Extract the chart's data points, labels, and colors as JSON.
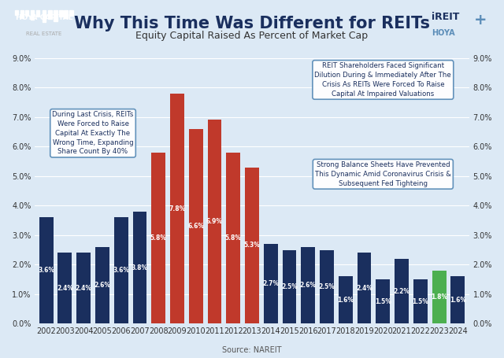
{
  "years": [
    "2002",
    "2003",
    "2004",
    "2005",
    "2006",
    "2007",
    "2008",
    "2009",
    "2010",
    "2011",
    "2012",
    "2013",
    "2014",
    "2015",
    "2016",
    "2017",
    "2018",
    "2019",
    "2020",
    "2021",
    "2022",
    "2023",
    "2024"
  ],
  "values": [
    3.6,
    2.4,
    2.4,
    2.6,
    3.6,
    3.8,
    5.8,
    7.8,
    6.6,
    6.9,
    5.8,
    5.3,
    2.7,
    2.5,
    2.6,
    2.5,
    1.6,
    2.4,
    1.5,
    2.2,
    1.5,
    1.8,
    1.6
  ],
  "colors": [
    "#1a2f5e",
    "#1a2f5e",
    "#1a2f5e",
    "#1a2f5e",
    "#1a2f5e",
    "#1a2f5e",
    "#c0392b",
    "#c0392b",
    "#c0392b",
    "#c0392b",
    "#c0392b",
    "#c0392b",
    "#1a2f5e",
    "#1a2f5e",
    "#1a2f5e",
    "#1a2f5e",
    "#1a2f5e",
    "#1a2f5e",
    "#1a2f5e",
    "#1a2f5e",
    "#1a2f5e",
    "#4caf50",
    "#1a2f5e"
  ],
  "title": "Why This Time Was Different for REITs",
  "subtitle": "Equity Capital Raised As Percent of Market Cap",
  "source": "Source: NAREIT",
  "bg_color": "#dce9f5",
  "ylim": [
    0,
    9.0
  ],
  "yticks": [
    0.0,
    1.0,
    2.0,
    3.0,
    4.0,
    5.0,
    6.0,
    7.0,
    8.0,
    9.0
  ],
  "box1_text": "During Last Crisis, REITs\nWere Forced to Raise\nCapital At Exactly The\nWrong Time, Expanding\nShare Count By 40%",
  "box2_text": "REIT Shareholders Faced Significant\nDilution During & Immediately After The\nCrisis As REITs Were Forced To Raise\nCapital At Impaired Valuations",
  "box3_text": "Strong Balance Sheets Have Prevented\nThis Dynamic Amid Coronavirus Crisis &\nSubsequent Fed Tighteing",
  "title_color": "#1a2f5e",
  "label_color_dark": "white",
  "label_color_light": "#1a2f5e"
}
